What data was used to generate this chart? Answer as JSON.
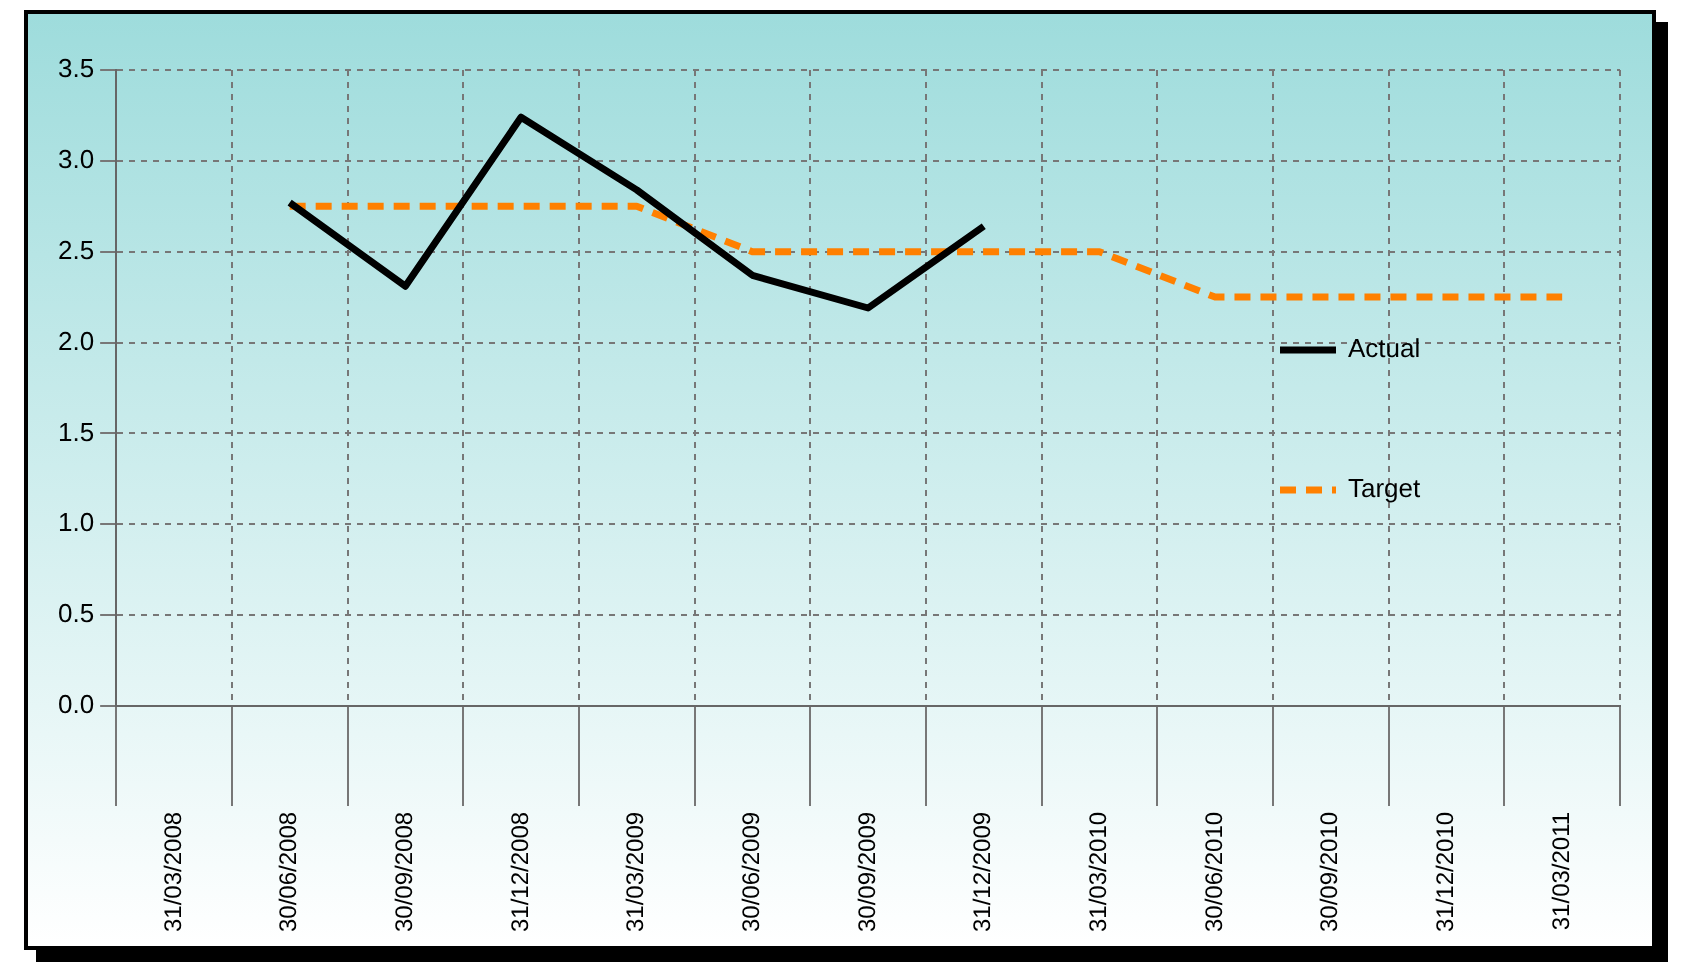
{
  "chart_data": {
    "type": "line",
    "categories": [
      "31/03/2008",
      "30/06/2008",
      "30/09/2008",
      "31/12/2008",
      "31/03/2009",
      "30/06/2009",
      "30/09/2009",
      "31/12/2009",
      "31/03/2010",
      "30/06/2010",
      "30/09/2010",
      "31/12/2010",
      "31/03/2011"
    ],
    "series": [
      {
        "name": "Actual",
        "color": "#000000",
        "line_style": "solid",
        "values": [
          null,
          2.77,
          2.31,
          3.24,
          2.84,
          2.37,
          2.19,
          2.64,
          null,
          null,
          null,
          null,
          null
        ]
      },
      {
        "name": "Target",
        "color": "#ff8000",
        "line_style": "dashed",
        "values": [
          null,
          2.75,
          2.75,
          2.75,
          2.75,
          2.5,
          2.5,
          2.5,
          2.5,
          2.25,
          2.25,
          2.25,
          2.25
        ]
      }
    ],
    "ylim": [
      0,
      3.5
    ],
    "yticks": [
      {
        "value": 0,
        "label": "0.0"
      },
      {
        "value": 0.5,
        "label": "0.5"
      },
      {
        "value": 1,
        "label": "1.0"
      },
      {
        "value": 1.5,
        "label": "1.5"
      },
      {
        "value": 2,
        "label": "2.0"
      },
      {
        "value": 2.5,
        "label": "2.5"
      },
      {
        "value": 3,
        "label": "3.0"
      },
      {
        "value": 3.5,
        "label": "3.5"
      }
    ],
    "grid": true,
    "legend": "right",
    "marker": "none"
  }
}
